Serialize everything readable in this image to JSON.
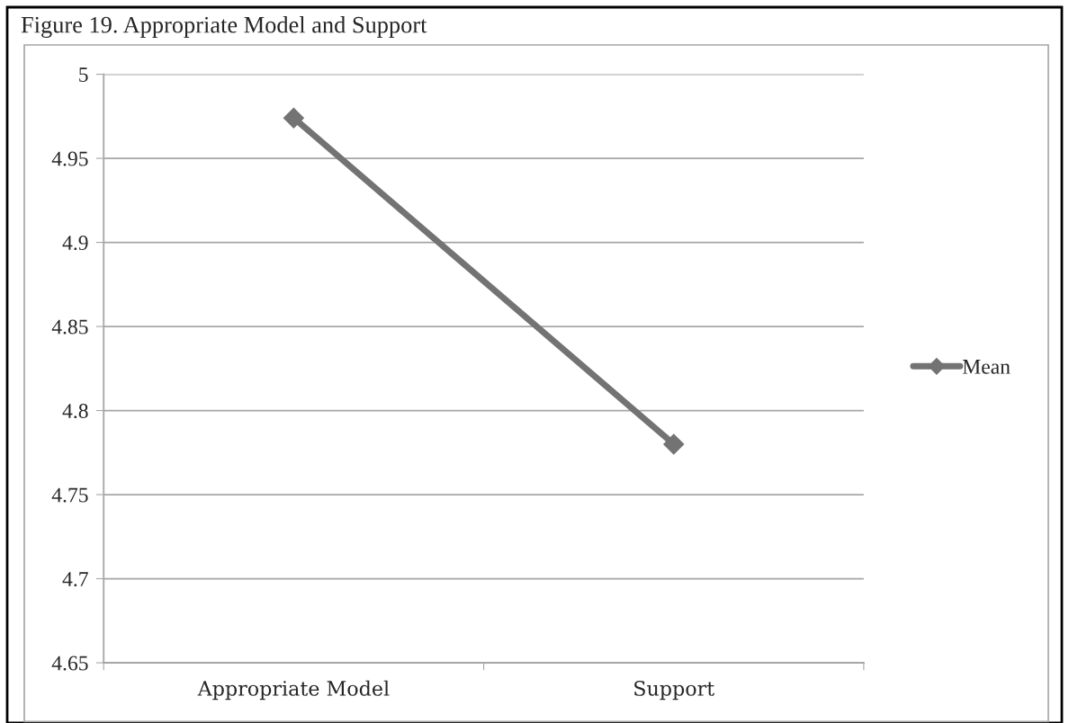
{
  "chart_data": {
    "type": "line",
    "title": "Figure 19. Appropriate Model and Support",
    "categories": [
      "Appropriate Model",
      "Support"
    ],
    "series": [
      {
        "name": "Mean",
        "color": "#737373",
        "values": [
          4.974,
          4.78
        ]
      }
    ],
    "ylim": [
      4.65,
      5
    ],
    "yticks": [
      4.65,
      4.7,
      4.75,
      4.8,
      4.85,
      4.9,
      4.95,
      5
    ],
    "grid": "y",
    "legend": "right",
    "marker": "diamond",
    "line_style": "solid"
  }
}
